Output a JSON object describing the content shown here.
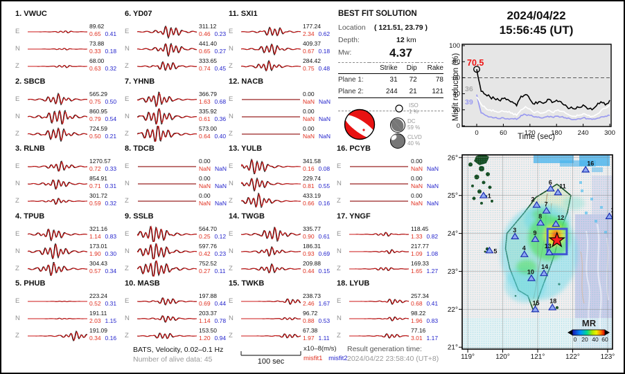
{
  "datetime": {
    "date": "2024/04/22",
    "time": "15:56:45  (UT)"
  },
  "solution": {
    "title": "BEST FIT SOLUTION",
    "location_label": "Location",
    "location_value": "( 121.51,  23.79 )",
    "depth_label": "Depth:",
    "depth_value": "12",
    "depth_unit": "km",
    "mw_label": "Mw:",
    "mw_value": "4.37",
    "table": {
      "headers": [
        "Strike",
        "Dip",
        "Rake"
      ],
      "rows": [
        {
          "label": "Plane 1:",
          "strike": "31",
          "dip": "72",
          "rake": "78"
        },
        {
          "label": "Plane 2:",
          "strike": "244",
          "dip": "21",
          "rake": "121"
        }
      ]
    },
    "decomp": [
      {
        "name": "ISO",
        "pct": "1 %"
      },
      {
        "name": "DC",
        "pct": "59 %"
      },
      {
        "name": "CLVD",
        "pct": "40 %"
      }
    ]
  },
  "chart_data": {
    "type": "line",
    "title": "2024/04/22 15:56:45 (UT)",
    "xlabel": "Time (sec)",
    "ylabel": "Misfit reduction (%)",
    "xlim": [
      0,
      300
    ],
    "ylim": [
      0,
      100
    ],
    "grid": false,
    "threshold_dashed_y": 60,
    "marker": {
      "x": 0,
      "y": 70.5
    },
    "xticks": [
      0,
      60,
      120,
      180,
      240,
      300
    ],
    "yticks": [
      0,
      20,
      40,
      60,
      80,
      100
    ],
    "x": [
      0,
      10,
      20,
      30,
      40,
      50,
      60,
      70,
      80,
      90,
      100,
      110,
      120,
      130,
      140,
      150,
      160,
      170,
      180,
      190,
      200,
      210,
      220,
      230,
      240,
      250,
      260,
      270,
      280,
      290,
      300
    ],
    "series": [
      {
        "name": "best solution",
        "color": "#000000",
        "values": [
          70.5,
          43,
          39,
          36,
          34,
          32,
          34,
          33,
          30,
          25,
          37,
          39,
          33,
          27,
          30,
          28,
          33,
          29,
          32,
          30,
          26,
          22,
          21,
          23,
          26,
          21,
          20,
          25,
          30,
          26,
          32
        ]
      },
      {
        "name": "secondary solution",
        "color": "#ffffff",
        "values": [
          36,
          27,
          22,
          20,
          18,
          17,
          18,
          17,
          16,
          13,
          20,
          24,
          21,
          16,
          17,
          16,
          19,
          17,
          19,
          18,
          16,
          13,
          12,
          13,
          15,
          13,
          12,
          14,
          19,
          22,
          26
        ]
      },
      {
        "name": "tertiary solution",
        "color": "#9a9af0",
        "values": [
          39,
          16,
          13,
          11,
          10,
          9,
          10,
          9,
          9,
          8,
          13,
          14,
          13,
          11,
          11,
          10,
          12,
          11,
          12,
          11,
          10,
          9,
          8,
          9,
          10,
          9,
          8,
          9,
          11,
          12,
          13
        ]
      }
    ],
    "annotations": [
      {
        "text": "70.5",
        "color": "#ee1111"
      },
      {
        "text": "36",
        "color": "#aaaaaa"
      },
      {
        "text": "39",
        "color": "#9a9af0"
      }
    ]
  },
  "stations": [
    {
      "num": "1.",
      "name": "VWUC",
      "traces": [
        {
          "c": "E",
          "amp": "89.62",
          "m1": "0.65",
          "m2": "0.41",
          "w": 0.25,
          "p": 0.62
        },
        {
          "c": "N",
          "amp": "73.88",
          "m1": "0.33",
          "m2": "0.18",
          "w": 0.18,
          "p": 0.6
        },
        {
          "c": "Z",
          "amp": "68.00",
          "m1": "0.63",
          "m2": "0.32",
          "w": 0.3,
          "p": 0.6
        }
      ]
    },
    {
      "num": "2.",
      "name": "SBCB",
      "traces": [
        {
          "c": "E",
          "amp": "565.29",
          "m1": "0.75",
          "m2": "0.50",
          "w": 1.1,
          "p": 0.5
        },
        {
          "c": "N",
          "amp": "860.95",
          "m1": "0.79",
          "m2": "0.54",
          "w": 1.6,
          "p": 0.52
        },
        {
          "c": "Z",
          "amp": "724.59",
          "m1": "0.50",
          "m2": "0.21",
          "w": 1.4,
          "p": 0.5
        }
      ]
    },
    {
      "num": "3.",
      "name": "RLNB",
      "traces": [
        {
          "c": "E",
          "amp": "1270.57",
          "m1": "0.72",
          "m2": "0.33",
          "w": 1.0,
          "p": 0.55
        },
        {
          "c": "N",
          "amp": "854.91",
          "m1": "0.71",
          "m2": "0.31",
          "w": 1.0,
          "p": 0.5
        },
        {
          "c": "Z",
          "amp": "301.72",
          "m1": "0.59",
          "m2": "0.32",
          "w": 0.6,
          "p": 0.5
        }
      ]
    },
    {
      "num": "4.",
      "name": "TPUB",
      "traces": [
        {
          "c": "E",
          "amp": "321.16",
          "m1": "1.14",
          "m2": "0.83",
          "w": 1.2,
          "p": 0.42
        },
        {
          "c": "N",
          "amp": "173.01",
          "m1": "1.90",
          "m2": "0.30",
          "w": 1.5,
          "p": 0.45
        },
        {
          "c": "Z",
          "amp": "304.43",
          "m1": "0.57",
          "m2": "0.34",
          "w": 1.3,
          "p": 0.42
        }
      ]
    },
    {
      "num": "5.",
      "name": "PHUB",
      "traces": [
        {
          "c": "E",
          "amp": "223.24",
          "m1": "0.52",
          "m2": "0.31",
          "w": 0.08,
          "p": 0.6
        },
        {
          "c": "N",
          "amp": "191.11",
          "m1": "2.03",
          "m2": "1.15",
          "w": 0.12,
          "p": 0.6
        },
        {
          "c": "Z",
          "amp": "191.09",
          "m1": "0.34",
          "m2": "0.16",
          "w": 0.9,
          "p": 0.8
        }
      ]
    },
    {
      "num": "6.",
      "name": "YD07",
      "traces": [
        {
          "c": "E",
          "amp": "311.12",
          "m1": "0.46",
          "m2": "0.23",
          "w": 1.2,
          "p": 0.55
        },
        {
          "c": "N",
          "amp": "441.40",
          "m1": "0.65",
          "m2": "0.27",
          "w": 1.3,
          "p": 0.55
        },
        {
          "c": "Z",
          "amp": "333.65",
          "m1": "0.74",
          "m2": "0.45",
          "w": 1.0,
          "p": 0.5
        }
      ]
    },
    {
      "num": "7.",
      "name": "YHNB",
      "traces": [
        {
          "c": "E",
          "amp": "366.79",
          "m1": "1.63",
          "m2": "0.68",
          "w": 1.4,
          "p": 0.35
        },
        {
          "c": "N",
          "amp": "335.92",
          "m1": "0.61",
          "m2": "0.36",
          "w": 1.7,
          "p": 0.35
        },
        {
          "c": "Z",
          "amp": "573.00",
          "m1": "0.64",
          "m2": "0.40",
          "w": 1.9,
          "p": 0.33
        }
      ]
    },
    {
      "num": "8.",
      "name": "TDCB",
      "traces": [
        {
          "c": "E",
          "amp": "0.00",
          "m1": "NaN",
          "m2": "NaN",
          "w": 0,
          "p": 0.5
        },
        {
          "c": "N",
          "amp": "0.00",
          "m1": "NaN",
          "m2": "NaN",
          "w": 0,
          "p": 0.5
        },
        {
          "c": "Z",
          "amp": "0.00",
          "m1": "NaN",
          "m2": "NaN",
          "w": 0,
          "p": 0.5
        }
      ]
    },
    {
      "num": "9.",
      "name": "SSLB",
      "traces": [
        {
          "c": "E",
          "amp": "564.70",
          "m1": "0.25",
          "m2": "0.12",
          "w": 1.9,
          "p": 0.3
        },
        {
          "c": "N",
          "amp": "597.76",
          "m1": "0.42",
          "m2": "0.23",
          "w": 2.1,
          "p": 0.3
        },
        {
          "c": "Z",
          "amp": "752.52",
          "m1": "0.27",
          "m2": "0.11",
          "w": 2.4,
          "p": 0.3
        }
      ]
    },
    {
      "num": "10.",
      "name": "MASB",
      "traces": [
        {
          "c": "E",
          "amp": "197.88",
          "m1": "0.69",
          "m2": "0.44",
          "w": 0.8,
          "p": 0.5
        },
        {
          "c": "N",
          "amp": "203.37",
          "m1": "1.14",
          "m2": "0.78",
          "w": 0.7,
          "p": 0.5
        },
        {
          "c": "Z",
          "amp": "153.50",
          "m1": "1.20",
          "m2": "0.94",
          "w": 0.7,
          "p": 0.45
        }
      ]
    },
    {
      "num": "11.",
      "name": "SXI1",
      "traces": [
        {
          "c": "E",
          "amp": "177.24",
          "m1": "2.34",
          "m2": "0.62",
          "w": 1.0,
          "p": 0.55
        },
        {
          "c": "N",
          "amp": "409.37",
          "m1": "0.67",
          "m2": "0.18",
          "w": 1.1,
          "p": 0.5
        },
        {
          "c": "Z",
          "amp": "284.42",
          "m1": "0.75",
          "m2": "0.48",
          "w": 1.0,
          "p": 0.45
        }
      ]
    },
    {
      "num": "12.",
      "name": "NACB",
      "traces": [
        {
          "c": "E",
          "amp": "0.00",
          "m1": "NaN",
          "m2": "NaN",
          "w": 0,
          "p": 0.5
        },
        {
          "c": "N",
          "amp": "0.00",
          "m1": "NaN",
          "m2": "NaN",
          "w": 0,
          "p": 0.5
        },
        {
          "c": "Z",
          "amp": "0.00",
          "m1": "NaN",
          "m2": "NaN",
          "w": 0,
          "p": 0.5
        }
      ]
    },
    {
      "num": "13.",
      "name": "YULB",
      "traces": [
        {
          "c": "E",
          "amp": "341.58",
          "m1": "0.16",
          "m2": "0.08",
          "w": 1.5,
          "p": 0.25
        },
        {
          "c": "N",
          "amp": "229.74",
          "m1": "0.81",
          "m2": "0.55",
          "w": 1.3,
          "p": 0.25
        },
        {
          "c": "Z",
          "amp": "433.19",
          "m1": "0.66",
          "m2": "0.16",
          "w": 1.4,
          "p": 0.28
        }
      ]
    },
    {
      "num": "14.",
      "name": "TWGB",
      "traces": [
        {
          "c": "E",
          "amp": "335.77",
          "m1": "0.90",
          "m2": "0.61",
          "w": 1.4,
          "p": 0.55
        },
        {
          "c": "N",
          "amp": "186.31",
          "m1": "0.93",
          "m2": "0.69",
          "w": 0.9,
          "p": 0.5
        },
        {
          "c": "Z",
          "amp": "209.88",
          "m1": "0.44",
          "m2": "0.15",
          "w": 0.9,
          "p": 0.5
        }
      ]
    },
    {
      "num": "15.",
      "name": "TWKB",
      "traces": [
        {
          "c": "E",
          "amp": "238.73",
          "m1": "2.46",
          "m2": "1.67",
          "w": 0.6,
          "p": 0.85
        },
        {
          "c": "N",
          "amp": "96.72",
          "m1": "0.88",
          "m2": "0.53",
          "w": 0.3,
          "p": 0.8
        },
        {
          "c": "Z",
          "amp": "67.38",
          "m1": "1.97",
          "m2": "1.11",
          "w": 0.5,
          "p": 0.8
        }
      ]
    },
    {
      "num": "16.",
      "name": "PCYB",
      "traces": [
        {
          "c": "E",
          "amp": "0.00",
          "m1": "NaN",
          "m2": "NaN",
          "w": 0,
          "p": 0.5
        },
        {
          "c": "N",
          "amp": "0.00",
          "m1": "NaN",
          "m2": "NaN",
          "w": 0,
          "p": 0.5
        },
        {
          "c": "Z",
          "amp": "0.00",
          "m1": "NaN",
          "m2": "NaN",
          "w": 0,
          "p": 0.5
        }
      ]
    },
    {
      "num": "17.",
      "name": "YNGF",
      "traces": [
        {
          "c": "E",
          "amp": "118.45",
          "m1": "1.33",
          "m2": "0.82",
          "w": 0.4,
          "p": 0.6
        },
        {
          "c": "N",
          "amp": "217.77",
          "m1": "1.09",
          "m2": "1.08",
          "w": 0.4,
          "p": 0.7
        },
        {
          "c": "Z",
          "amp": "169.33",
          "m1": "1.65",
          "m2": "1.27",
          "w": 0.4,
          "p": 0.6
        }
      ]
    },
    {
      "num": "18.",
      "name": "LYUB",
      "traces": [
        {
          "c": "E",
          "amp": "257.34",
          "m1": "0.68",
          "m2": "0.41",
          "w": 0.55,
          "p": 0.75
        },
        {
          "c": "N",
          "amp": "98.22",
          "m1": "1.96",
          "m2": "0.83",
          "w": 0.4,
          "p": 0.75
        },
        {
          "c": "Z",
          "amp": "77.16",
          "m1": "3.01",
          "m2": "1.17",
          "w": 0.5,
          "p": 0.7
        }
      ]
    }
  ],
  "map": {
    "lat_labels": [
      {
        "v": 26,
        "t": "26°"
      },
      {
        "v": 25,
        "t": "25°"
      },
      {
        "v": 24,
        "t": "24°"
      },
      {
        "v": 23,
        "t": "23°"
      },
      {
        "v": 22,
        "t": "22°"
      },
      {
        "v": 21,
        "t": "21°"
      }
    ],
    "lon_labels": [
      {
        "v": 119,
        "t": "119°"
      },
      {
        "v": 120,
        "t": "120°"
      },
      {
        "v": 121,
        "t": "121°"
      },
      {
        "v": 122,
        "t": "122°"
      },
      {
        "v": 123,
        "t": "123°"
      }
    ],
    "stations": [
      {
        "id": "1",
        "lon": 119.45,
        "lat": 25.0,
        "lx": 6,
        "ly": 4
      },
      {
        "id": "2",
        "lon": 120.97,
        "lat": 24.75,
        "lx": -8,
        "ly": -5
      },
      {
        "id": "3",
        "lon": 120.35,
        "lat": 23.92,
        "lx": -3,
        "ly": -6
      },
      {
        "id": "4",
        "lon": 120.62,
        "lat": 23.45,
        "lx": -3,
        "ly": -6
      },
      {
        "id": "5",
        "lon": 119.62,
        "lat": 23.55,
        "lx": 6,
        "ly": 4
      },
      {
        "id": "6",
        "lon": 121.37,
        "lat": 25.18,
        "lx": -3,
        "ly": -6
      },
      {
        "id": "7",
        "lon": 121.25,
        "lat": 24.6,
        "lx": -3,
        "ly": -6
      },
      {
        "id": "8",
        "lon": 121.08,
        "lat": 24.28,
        "lx": -3,
        "ly": -6
      },
      {
        "id": "9",
        "lon": 120.93,
        "lat": 23.85,
        "lx": -3,
        "ly": -6
      },
      {
        "id": "10",
        "lon": 120.82,
        "lat": 22.82,
        "lx": -6,
        "ly": -6
      },
      {
        "id": "11",
        "lon": 121.58,
        "lat": 25.08,
        "lx": 2,
        "ly": -6
      },
      {
        "id": "12",
        "lon": 121.52,
        "lat": 24.25,
        "lx": 2,
        "ly": -6
      },
      {
        "id": "13",
        "lon": 121.33,
        "lat": 23.5,
        "lx": -7,
        "ly": -6
      },
      {
        "id": "14",
        "lon": 121.18,
        "lat": 22.95,
        "lx": -4,
        "ly": -6
      },
      {
        "id": "15",
        "lon": 120.93,
        "lat": 22.0,
        "lx": -4,
        "ly": -6
      },
      {
        "id": "16",
        "lon": 122.37,
        "lat": 25.68,
        "lx": 2,
        "ly": -6
      },
      {
        "id": "17",
        "lon": 123.05,
        "lat": 24.45,
        "lx": 2,
        "ly": -6
      },
      {
        "id": "18",
        "lon": 121.42,
        "lat": 22.05,
        "lx": -4,
        "ly": -6
      }
    ],
    "epicenter": {
      "lon": 121.55,
      "lat": 23.82
    },
    "search_box": {
      "w": 121.28,
      "e": 121.83,
      "s": 23.45,
      "n": 24.12
    },
    "colorbar": {
      "title": "MR",
      "ticks": [
        "0",
        "20",
        "40",
        "60"
      ]
    }
  },
  "footer": {
    "dataset": "BATS, Velocity, 0.02–0.1 Hz",
    "alive": "Number of alive data: 45",
    "scale": "100 sec",
    "units": "x10–8(m/s)",
    "misfit1": "misfit1",
    "misfit2": "misfit2",
    "gen_label": "Result generation time:",
    "gen_value": "2024/04/22 23:58:40 (UT+8)"
  }
}
